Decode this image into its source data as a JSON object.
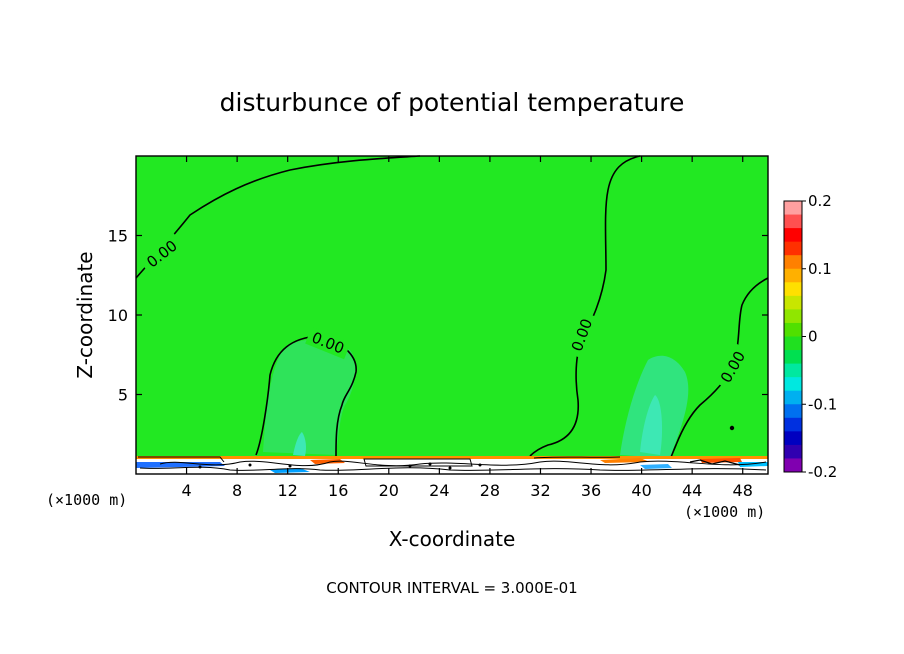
{
  "chart_data": {
    "type": "heatmap",
    "title": "disturbunce of potential temperature",
    "xlabel": "X-coordinate",
    "ylabel": "Z-coordinate",
    "x_unit": "(×1000 m)",
    "y_unit": "(×1000 m)",
    "xlim": [
      0,
      50
    ],
    "ylim": [
      0,
      20
    ],
    "x_ticks": [
      4,
      8,
      12,
      16,
      20,
      24,
      28,
      32,
      36,
      40,
      44,
      48
    ],
    "y_ticks": [
      5,
      10,
      15
    ],
    "contour_interval": "CONTOUR INTERVAL = 3.000E-01",
    "contour_labels": [
      "0.00",
      "0.00",
      "0.00",
      "0.00"
    ],
    "background_value": 0,
    "colorbar": {
      "range": [
        -0.2,
        0.2
      ],
      "ticks": [
        "0.2",
        "0.1",
        "0",
        "-0.1",
        "-0.2"
      ],
      "tick_values": [
        0.2,
        0.1,
        0,
        -0.1,
        -0.2
      ],
      "colors": [
        "#ffa0a0",
        "#ff5050",
        "#ff0000",
        "#ff3000",
        "#ff8000",
        "#ffb000",
        "#ffe000",
        "#c8e600",
        "#90e600",
        "#50e000",
        "#20e020",
        "#00e050",
        "#00e8a0",
        "#00e8e0",
        "#00b0f0",
        "#0070f0",
        "#0030e0",
        "#0000c0",
        "#3000b0",
        "#8000b0"
      ]
    },
    "colors": {
      "field": "#22e822",
      "weak_negative": "#33e17a",
      "cyan_patch": "#3de8b4",
      "contour": "#000000"
    }
  }
}
